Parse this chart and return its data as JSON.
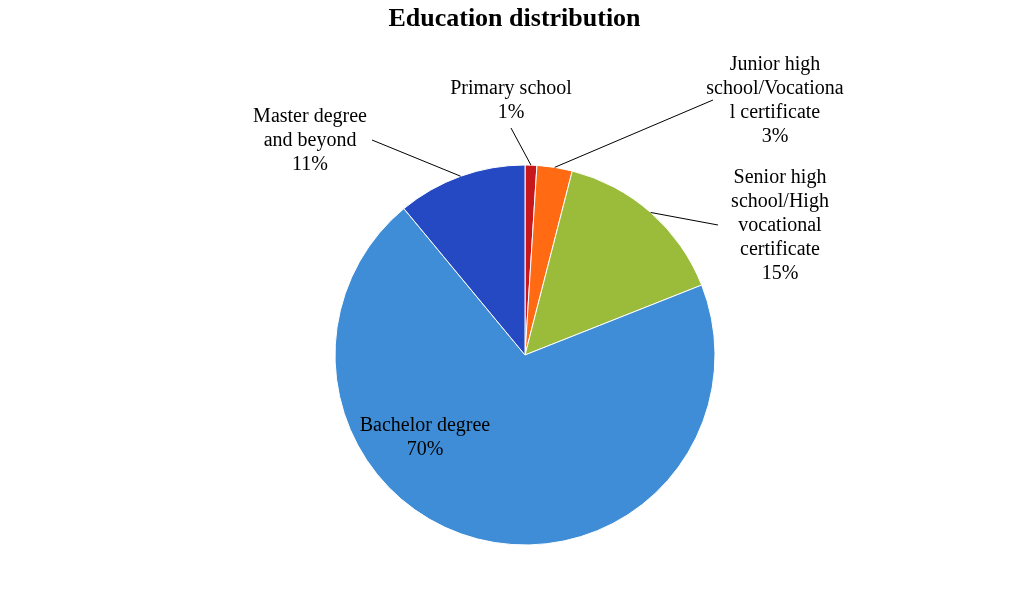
{
  "chart_data": {
    "type": "pie",
    "title": "Education distribution",
    "categories": [
      "Primary school",
      "Junior high\nschool/Vocationa\nl certificate",
      "Senior high\nschool/High\nvocational\ncertificate",
      "Bachelor degree",
      "Master degree\nand beyond"
    ],
    "values": [
      1,
      3,
      15,
      70,
      11
    ],
    "value_labels": [
      "1%",
      "3%",
      "15%",
      "70%",
      "11%"
    ],
    "colors": [
      "#c8161d",
      "#ff6a13",
      "#9bbb3b",
      "#3f8dd6",
      "#2449c3"
    ]
  }
}
